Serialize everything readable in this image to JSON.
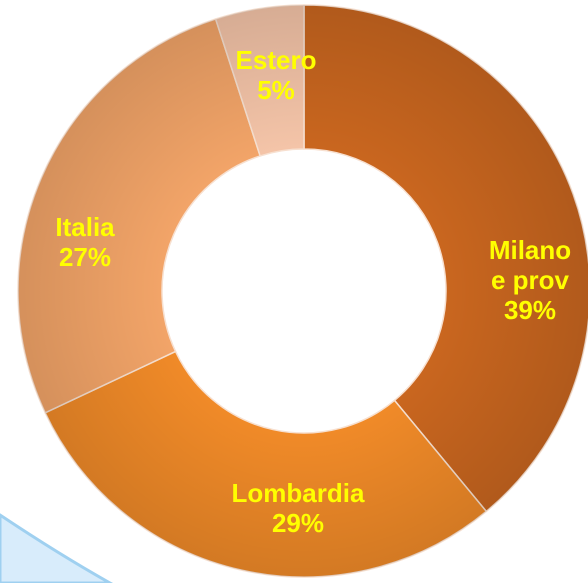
{
  "chart_data": {
    "type": "donut",
    "categories": [
      "Milano e prov",
      "Lombardia",
      "Italia",
      "Estero"
    ],
    "values": [
      39,
      29,
      27,
      5
    ],
    "value_labels": [
      "39%",
      "29%",
      "27%",
      "5%"
    ],
    "colors": [
      "#c9661f",
      "#f08a28",
      "#f2a468",
      "#f4c4a8"
    ]
  }
}
